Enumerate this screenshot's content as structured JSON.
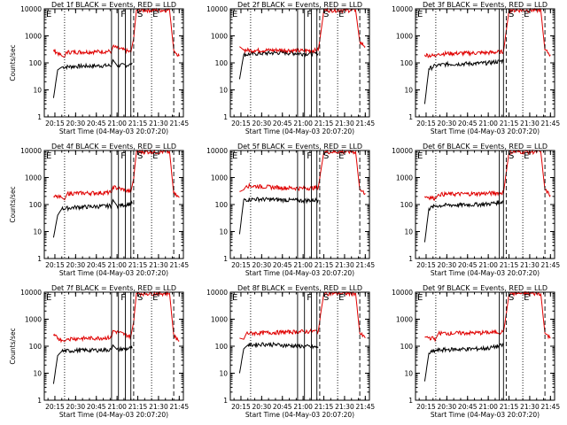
{
  "figure": {
    "colors": {
      "background": "#ffffff",
      "axis": "#000000",
      "events": "#000000",
      "lld": "#e00000"
    }
  },
  "chart_data": [
    {
      "type": "line",
      "title": "Det 1f BLACK = Events, RED = LLD",
      "xlabel": "Start Time (04-May-03 20:07:20)",
      "ylabel": "Counts/sec",
      "x_ticks": [
        "20:15",
        "20:30",
        "20:45",
        "21:00",
        "21:15",
        "21:30",
        "21:45"
      ],
      "y_ticks": [
        "1",
        "10",
        "100",
        "1000",
        "10000"
      ],
      "y_scale": "log",
      "ylim": [
        1,
        10000
      ],
      "grid": false,
      "flag_labels": [
        "E",
        "F",
        "S",
        "E"
      ],
      "series": [
        {
          "name": "Events",
          "color": "#000000",
          "points": [
            [
              "20:14",
              5
            ],
            [
              "20:17",
              55
            ],
            [
              "20:20",
              70
            ],
            [
              "20:30",
              75
            ],
            [
              "20:45",
              78
            ],
            [
              "20:56",
              80
            ],
            [
              "20:57",
              130
            ],
            [
              "21:00",
              80
            ],
            [
              "21:10",
              85
            ],
            [
              "21:11",
              100
            ]
          ]
        },
        {
          "name": "LLD",
          "color": "#e00000",
          "points": [
            [
              "20:14",
              300
            ],
            [
              "20:20",
              180
            ],
            [
              "20:22",
              160
            ],
            [
              "20:23",
              250
            ],
            [
              "20:45",
              260
            ],
            [
              "20:56",
              270
            ],
            [
              "20:57",
              400
            ],
            [
              "21:10",
              250
            ],
            [
              "21:12",
              800
            ],
            [
              "21:14",
              9000
            ],
            [
              "21:38",
              9000
            ],
            [
              "21:41",
              300
            ],
            [
              "21:45",
              180
            ]
          ]
        }
      ]
    },
    {
      "type": "line",
      "title": "Det 2f BLACK = Events, RED = LLD",
      "xlabel": "Start Time (04-May-03 20:07:20)",
      "ylabel": "",
      "x_ticks": [
        "20:15",
        "20:30",
        "20:45",
        "21:00",
        "21:15",
        "21:30",
        "21:45"
      ],
      "y_ticks": [
        "1",
        "10",
        "100",
        "1000",
        "10000"
      ],
      "y_scale": "log",
      "ylim": [
        1,
        10000
      ],
      "grid": false,
      "flag_labels": [
        "E",
        "F",
        "S",
        "E"
      ],
      "series": [
        {
          "name": "Events",
          "color": "#000000",
          "points": [
            [
              "20:14",
              25
            ],
            [
              "20:17",
              200
            ],
            [
              "20:25",
              220
            ],
            [
              "20:45",
              240
            ],
            [
              "21:00",
              220
            ],
            [
              "21:11",
              220
            ]
          ]
        },
        {
          "name": "LLD",
          "color": "#e00000",
          "points": [
            [
              "20:14",
              400
            ],
            [
              "20:17",
              300
            ],
            [
              "20:25",
              290
            ],
            [
              "20:45",
              300
            ],
            [
              "21:00",
              280
            ],
            [
              "21:11",
              300
            ],
            [
              "21:13",
              1500
            ],
            [
              "21:15",
              9000
            ],
            [
              "21:38",
              9000
            ],
            [
              "21:41",
              600
            ],
            [
              "21:45",
              400
            ]
          ]
        }
      ]
    },
    {
      "type": "line",
      "title": "Det 3f BLACK = Events, RED = LLD",
      "xlabel": "Start Time (04-May-03 20:07:20)",
      "ylabel": "",
      "x_ticks": [
        "20:15",
        "20:30",
        "20:45",
        "21:00",
        "21:15",
        "21:30",
        "21:45"
      ],
      "y_ticks": [
        "1",
        "10",
        "100",
        "1000",
        "10000"
      ],
      "y_scale": "log",
      "ylim": [
        1,
        10000
      ],
      "grid": false,
      "flag_labels": [
        "E",
        "S",
        "E"
      ],
      "series": [
        {
          "name": "Events",
          "color": "#000000",
          "points": [
            [
              "20:14",
              3
            ],
            [
              "20:17",
              60
            ],
            [
              "20:22",
              80
            ],
            [
              "20:30",
              90
            ],
            [
              "20:50",
              95
            ],
            [
              "21:00",
              100
            ],
            [
              "21:11",
              120
            ]
          ]
        },
        {
          "name": "LLD",
          "color": "#e00000",
          "points": [
            [
              "20:14",
              200
            ],
            [
              "20:22",
              180
            ],
            [
              "20:24",
              220
            ],
            [
              "20:45",
              230
            ],
            [
              "21:00",
              240
            ],
            [
              "21:11",
              260
            ],
            [
              "21:13",
              1500
            ],
            [
              "21:15",
              9000
            ],
            [
              "21:38",
              9000
            ],
            [
              "21:41",
              300
            ],
            [
              "21:45",
              200
            ]
          ]
        }
      ]
    },
    {
      "type": "line",
      "title": "Det 4f BLACK = Events, RED = LLD",
      "xlabel": "Start Time (04-May-03 20:07:20)",
      "ylabel": "Counts/sec",
      "x_ticks": [
        "20:15",
        "20:30",
        "20:45",
        "21:00",
        "21:15",
        "21:30",
        "21:45"
      ],
      "y_ticks": [
        "1",
        "10",
        "100",
        "1000",
        "10000"
      ],
      "y_scale": "log",
      "ylim": [
        1,
        10000
      ],
      "grid": false,
      "flag_labels": [
        "E",
        "F",
        "S",
        "E"
      ],
      "series": [
        {
          "name": "Events",
          "color": "#000000",
          "points": [
            [
              "20:14",
              6
            ],
            [
              "20:17",
              40
            ],
            [
              "20:20",
              70
            ],
            [
              "20:30",
              80
            ],
            [
              "20:45",
              85
            ],
            [
              "20:56",
              90
            ],
            [
              "20:57",
              150
            ],
            [
              "21:00",
              90
            ],
            [
              "21:11",
              110
            ]
          ]
        },
        {
          "name": "LLD",
          "color": "#e00000",
          "points": [
            [
              "20:14",
              200
            ],
            [
              "20:20",
              180
            ],
            [
              "20:22",
              150
            ],
            [
              "20:24",
              260
            ],
            [
              "20:45",
              270
            ],
            [
              "20:56",
              280
            ],
            [
              "20:57",
              450
            ],
            [
              "21:10",
              300
            ],
            [
              "21:12",
              900
            ],
            [
              "21:14",
              9000
            ],
            [
              "21:38",
              9000
            ],
            [
              "21:41",
              250
            ],
            [
              "21:45",
              180
            ]
          ]
        }
      ]
    },
    {
      "type": "line",
      "title": "Det 5f BLACK = Events, RED = LLD",
      "xlabel": "Start Time (04-May-03 20:07:20)",
      "ylabel": "",
      "x_ticks": [
        "20:15",
        "20:30",
        "20:45",
        "21:00",
        "21:15",
        "21:30",
        "21:45"
      ],
      "y_ticks": [
        "1",
        "10",
        "100",
        "1000",
        "10000"
      ],
      "y_scale": "log",
      "ylim": [
        1,
        10000
      ],
      "grid": false,
      "flag_labels": [
        "E",
        "F",
        "S",
        "E"
      ],
      "series": [
        {
          "name": "Events",
          "color": "#000000",
          "points": [
            [
              "20:14",
              8
            ],
            [
              "20:17",
              150
            ],
            [
              "20:25",
              160
            ],
            [
              "20:45",
              150
            ],
            [
              "21:00",
              140
            ],
            [
              "21:11",
              150
            ]
          ]
        },
        {
          "name": "LLD",
          "color": "#e00000",
          "points": [
            [
              "20:14",
              300
            ],
            [
              "20:17",
              350
            ],
            [
              "20:19",
              500
            ],
            [
              "20:45",
              420
            ],
            [
              "21:00",
              400
            ],
            [
              "21:11",
              430
            ],
            [
              "21:13",
              2000
            ],
            [
              "21:15",
              9000
            ],
            [
              "21:38",
              9000
            ],
            [
              "21:41",
              350
            ],
            [
              "21:45",
              260
            ]
          ]
        }
      ]
    },
    {
      "type": "line",
      "title": "Det 6f BLACK = Events, RED = LLD",
      "xlabel": "Start Time (04-May-03 20:07:20)",
      "ylabel": "",
      "x_ticks": [
        "20:15",
        "20:30",
        "20:45",
        "21:00",
        "21:15",
        "21:30",
        "21:45"
      ],
      "y_ticks": [
        "1",
        "10",
        "100",
        "1000",
        "10000"
      ],
      "y_scale": "log",
      "ylim": [
        1,
        10000
      ],
      "grid": false,
      "flag_labels": [
        "E",
        "S",
        "E"
      ],
      "series": [
        {
          "name": "Events",
          "color": "#000000",
          "points": [
            [
              "20:14",
              4
            ],
            [
              "20:17",
              70
            ],
            [
              "20:22",
              90
            ],
            [
              "20:30",
              95
            ],
            [
              "20:50",
              100
            ],
            [
              "21:00",
              105
            ],
            [
              "21:11",
              130
            ]
          ]
        },
        {
          "name": "LLD",
          "color": "#e00000",
          "points": [
            [
              "20:14",
              200
            ],
            [
              "20:22",
              170
            ],
            [
              "20:24",
              240
            ],
            [
              "20:45",
              250
            ],
            [
              "21:00",
              260
            ],
            [
              "21:11",
              280
            ],
            [
              "21:13",
              1500
            ],
            [
              "21:15",
              9000
            ],
            [
              "21:38",
              9000
            ],
            [
              "21:41",
              350
            ],
            [
              "21:45",
              220
            ]
          ]
        }
      ]
    },
    {
      "type": "line",
      "title": "Det 7f BLACK = Events, RED = LLD",
      "xlabel": "Start Time (04-May-03 20:07:20)",
      "ylabel": "Counts/sec",
      "x_ticks": [
        "20:15",
        "20:30",
        "20:45",
        "21:00",
        "21:15",
        "21:30",
        "21:45"
      ],
      "y_ticks": [
        "1",
        "10",
        "100",
        "1000",
        "10000"
      ],
      "y_scale": "log",
      "ylim": [
        1,
        10000
      ],
      "grid": false,
      "flag_labels": [
        "E",
        "F",
        "S",
        "E"
      ],
      "series": [
        {
          "name": "Events",
          "color": "#000000",
          "points": [
            [
              "20:14",
              4
            ],
            [
              "20:17",
              45
            ],
            [
              "20:20",
              65
            ],
            [
              "20:30",
              70
            ],
            [
              "20:45",
              72
            ],
            [
              "20:56",
              75
            ],
            [
              "20:57",
              110
            ],
            [
              "21:00",
              75
            ],
            [
              "21:11",
              85
            ]
          ]
        },
        {
          "name": "LLD",
          "color": "#e00000",
          "points": [
            [
              "20:14",
              250
            ],
            [
              "20:20",
              170
            ],
            [
              "20:22",
              150
            ],
            [
              "20:24",
              190
            ],
            [
              "20:45",
              200
            ],
            [
              "20:56",
              210
            ],
            [
              "20:57",
              380
            ],
            [
              "21:10",
              230
            ],
            [
              "21:12",
              800
            ],
            [
              "21:14",
              9000
            ],
            [
              "21:38",
              9000
            ],
            [
              "21:41",
              250
            ],
            [
              "21:45",
              160
            ]
          ]
        }
      ]
    },
    {
      "type": "line",
      "title": "Det 8f BLACK = Events, RED = LLD",
      "xlabel": "Start Time (04-May-03 20:07:20)",
      "ylabel": "",
      "x_ticks": [
        "20:15",
        "20:30",
        "20:45",
        "21:00",
        "21:15",
        "21:30",
        "21:45"
      ],
      "y_ticks": [
        "1",
        "10",
        "100",
        "1000",
        "10000"
      ],
      "y_scale": "log",
      "ylim": [
        1,
        10000
      ],
      "grid": false,
      "flag_labels": [
        "E",
        "F",
        "S",
        "E"
      ],
      "series": [
        {
          "name": "Events",
          "color": "#000000",
          "points": [
            [
              "20:14",
              10
            ],
            [
              "20:17",
              80
            ],
            [
              "20:20",
              110
            ],
            [
              "20:30",
              120
            ],
            [
              "20:45",
              110
            ],
            [
              "21:00",
              100
            ],
            [
              "21:11",
              90
            ]
          ]
        },
        {
          "name": "LLD",
          "color": "#e00000",
          "points": [
            [
              "20:14",
              200
            ],
            [
              "20:17",
              180
            ],
            [
              "20:19",
              300
            ],
            [
              "20:45",
              330
            ],
            [
              "21:00",
              350
            ],
            [
              "21:11",
              360
            ],
            [
              "21:13",
              2000
            ],
            [
              "21:15",
              9000
            ],
            [
              "21:38",
              9000
            ],
            [
              "21:41",
              300
            ],
            [
              "21:45",
              200
            ]
          ]
        }
      ]
    },
    {
      "type": "line",
      "title": "Det 9f BLACK = Events, RED = LLD",
      "xlabel": "Start Time (04-May-03 20:07:20)",
      "ylabel": "",
      "x_ticks": [
        "20:15",
        "20:30",
        "20:45",
        "21:00",
        "21:15",
        "21:30",
        "21:45"
      ],
      "y_ticks": [
        "1",
        "10",
        "100",
        "1000",
        "10000"
      ],
      "y_scale": "log",
      "ylim": [
        1,
        10000
      ],
      "grid": false,
      "flag_labels": [
        "E",
        "S",
        "E"
      ],
      "series": [
        {
          "name": "Events",
          "color": "#000000",
          "points": [
            [
              "20:14",
              5
            ],
            [
              "20:17",
              55
            ],
            [
              "20:22",
              70
            ],
            [
              "20:30",
              75
            ],
            [
              "20:50",
              80
            ],
            [
              "21:00",
              85
            ],
            [
              "21:11",
              110
            ]
          ]
        },
        {
          "name": "LLD",
          "color": "#e00000",
          "points": [
            [
              "20:14",
              220
            ],
            [
              "20:22",
              190
            ],
            [
              "20:24",
              300
            ],
            [
              "20:45",
              310
            ],
            [
              "21:00",
              320
            ],
            [
              "21:11",
              340
            ],
            [
              "21:13",
              1500
            ],
            [
              "21:15",
              9000
            ],
            [
              "21:38",
              9000
            ],
            [
              "21:41",
              300
            ],
            [
              "21:45",
              200
            ]
          ]
        }
      ]
    }
  ]
}
